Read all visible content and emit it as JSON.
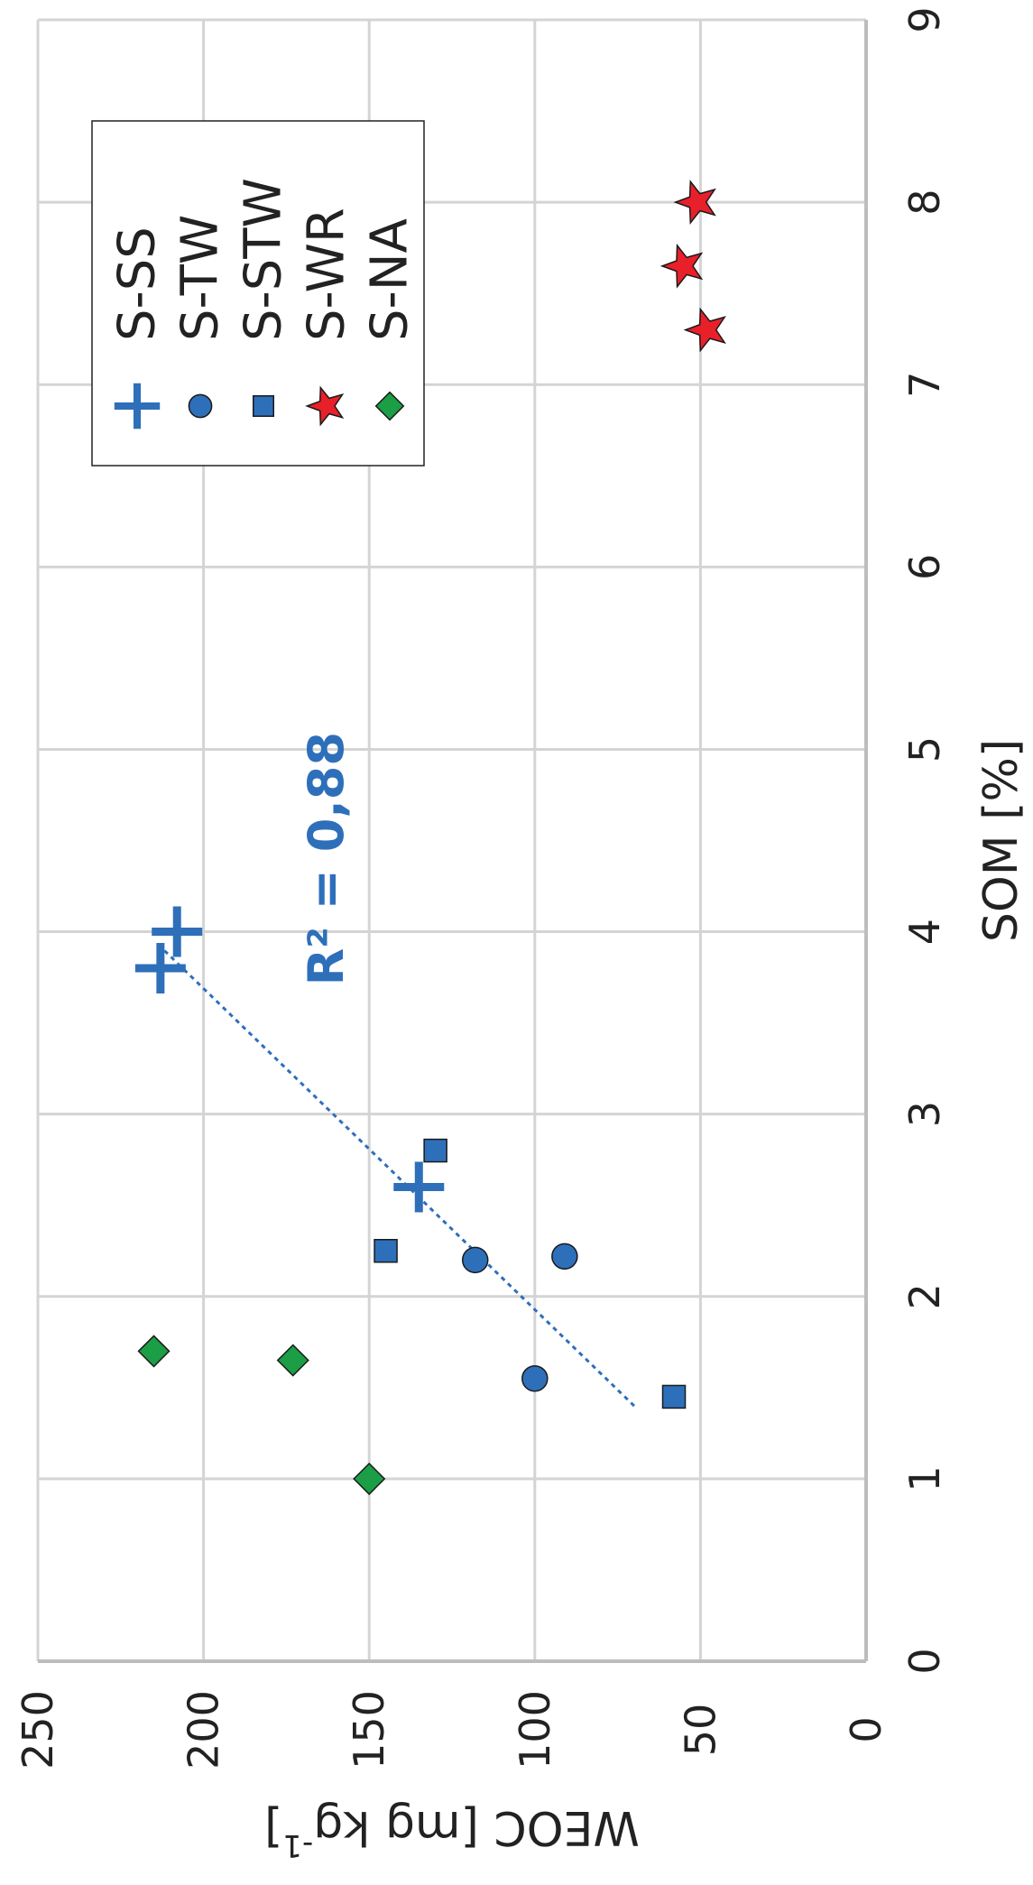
{
  "chart_data": {
    "type": "scatter",
    "xlabel": "SOM [%]",
    "ylabel_main": "WEOC [mg kg",
    "ylabel_sup": "-1",
    "ylabel_end": "]",
    "xlim": [
      0,
      9
    ],
    "ylim": [
      0,
      250
    ],
    "x_ticks": [
      0,
      1,
      2,
      3,
      4,
      5,
      6,
      7,
      8,
      9
    ],
    "y_ticks": [
      0,
      50,
      100,
      150,
      200,
      250
    ],
    "grid": true,
    "legend_position": "top-right",
    "series": [
      {
        "name": "S-SS",
        "marker": "plus",
        "color": "#2e6fba",
        "points": [
          [
            3.8,
            213
          ],
          [
            4.0,
            208
          ],
          [
            2.6,
            135
          ]
        ]
      },
      {
        "name": "S-TW",
        "marker": "circle",
        "color": "#2e6fba",
        "points": [
          [
            1.55,
            100
          ],
          [
            2.2,
            118
          ],
          [
            2.22,
            91
          ]
        ]
      },
      {
        "name": "S-STW",
        "marker": "square",
        "color": "#2e6fba",
        "points": [
          [
            1.45,
            58
          ],
          [
            2.25,
            145
          ],
          [
            2.8,
            130
          ]
        ]
      },
      {
        "name": "S-WR",
        "marker": "star",
        "color": "#e8202a",
        "points": [
          [
            7.3,
            48
          ],
          [
            7.65,
            55
          ],
          [
            8.0,
            51
          ]
        ]
      },
      {
        "name": "S-NA",
        "marker": "diamond",
        "color": "#1b9e45",
        "points": [
          [
            1.0,
            150
          ],
          [
            1.65,
            173
          ],
          [
            1.7,
            215
          ]
        ]
      }
    ],
    "trendline": {
      "x1": 1.4,
      "y1": 70,
      "x2": 3.9,
      "y2": 212,
      "color": "#2e6fba"
    },
    "annotation": {
      "text": "R² = 0,88",
      "x": 4.4,
      "y": 163,
      "color": "#2e6fba"
    }
  }
}
